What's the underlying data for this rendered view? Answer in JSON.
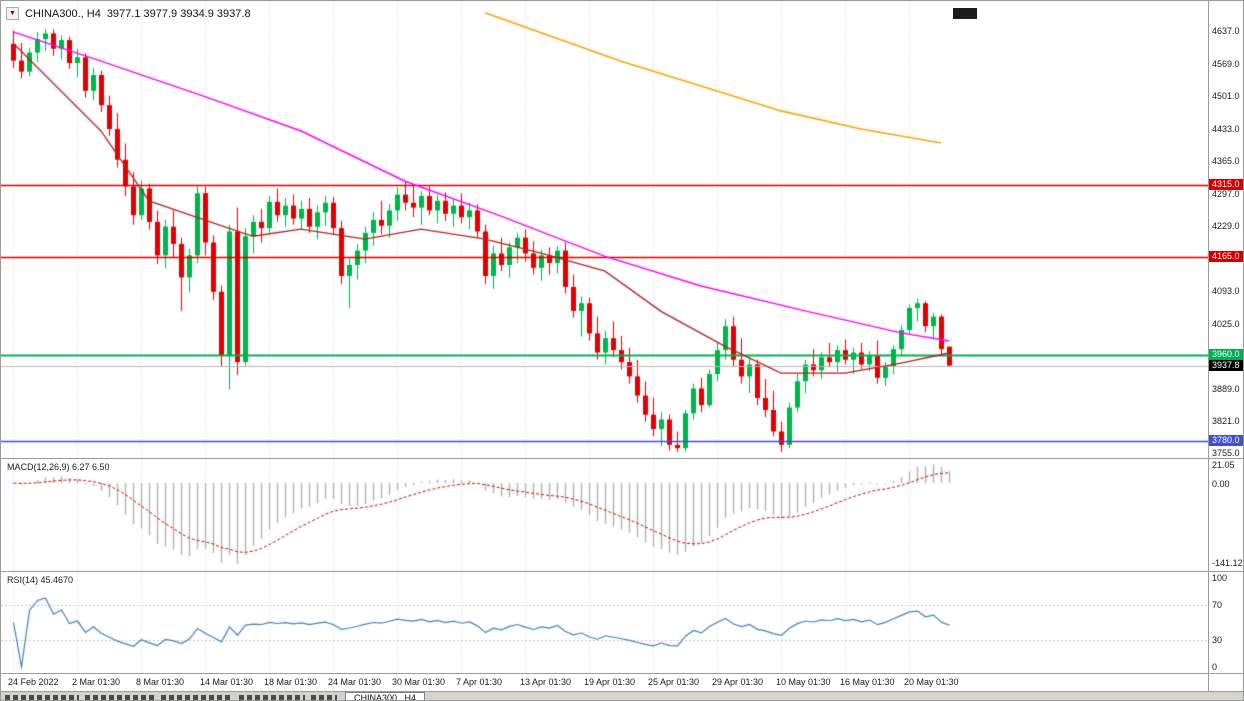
{
  "header": {
    "expander_icon": "▼",
    "title": "CHINA300., H4",
    "ohlc": "3977.1 3977.9 3934.9 3937.8"
  },
  "price_axis": {
    "ticks": [
      {
        "v": 4637,
        "t": "4637.0"
      },
      {
        "v": 4569,
        "t": "4569.0"
      },
      {
        "v": 4501,
        "t": "4501.0"
      },
      {
        "v": 4433,
        "t": "4433.0"
      },
      {
        "v": 4365,
        "t": "4365.0"
      },
      {
        "v": 4297,
        "t": "4297.0"
      },
      {
        "v": 4229,
        "t": "4229.0"
      },
      {
        "v": 4093,
        "t": "4093.0"
      },
      {
        "v": 4025,
        "t": "4025.0"
      },
      {
        "v": 3889,
        "t": "3889.0"
      },
      {
        "v": 3821,
        "t": "3821.0"
      },
      {
        "v": 3755,
        "t": "3755.0"
      }
    ],
    "level_labels": [
      {
        "v": 4315.0,
        "t": "4315.0",
        "bg": "#d40000"
      },
      {
        "v": 4165.0,
        "t": "4165.0",
        "bg": "#d40000"
      },
      {
        "v": 3960.0,
        "t": "3960.0",
        "bg": "#00b050"
      },
      {
        "v": 3937.8,
        "t": "3937.8",
        "bg": "#000000"
      },
      {
        "v": 3780.0,
        "t": "3780.0",
        "bg": "#4050c8"
      }
    ]
  },
  "macd_panel": {
    "label": "MACD(12,26,9) 6.27 6.50",
    "params": {
      "fast": 12,
      "slow": 26,
      "signal": 9
    },
    "current": {
      "macd": 6.27,
      "signal": 6.5
    },
    "axis": [
      {
        "t": "21.05"
      },
      {
        "t": "0.00"
      },
      {
        "t": "-141.12"
      }
    ]
  },
  "rsi_panel": {
    "label": "RSI(14) 45.4670",
    "period": 14,
    "current": 45.467,
    "axis": [
      {
        "v": 100,
        "t": "100"
      },
      {
        "v": 70,
        "t": "70"
      },
      {
        "v": 30,
        "t": "30"
      },
      {
        "v": 0,
        "t": "0"
      }
    ],
    "levels": [
      70,
      30
    ]
  },
  "bottom_bar": {
    "active_tab": "CHINA300., H4"
  },
  "colors": {
    "background": "#ffffff",
    "bull": "#00b44a",
    "bear": "#e00000",
    "ma_fast": "#b22222",
    "ma_mid": "#ff00ff",
    "ma_slow": "#ffa200",
    "current_price_line": "#b8b8b8",
    "macd_hist": "#b0b0b0",
    "macd_signal": "#d40000",
    "rsi_line": "#4080c0",
    "grid": "#d8d8d8"
  },
  "chart_data": {
    "type": "candlestick",
    "title": "CHINA300., H4",
    "symbol": "CHINA300.",
    "timeframe": "H4",
    "ohlc_current": {
      "open": 3977.1,
      "high": 3977.9,
      "low": 3934.9,
      "close": 3937.8
    },
    "ylim": [
      3749,
      4680
    ],
    "bars_per_x_tick": 8,
    "x_tick_labels": [
      "24 Feb 2022",
      "2 Mar 01:30",
      "8 Mar 01:30",
      "14 Mar 01:30",
      "18 Mar 01:30",
      "24 Mar 01:30",
      "30 Mar 01:30",
      "7 Apr 01:30",
      "13 Apr 01:30",
      "19 Apr 01:30",
      "25 Apr 01:30",
      "29 Apr 01:30",
      "10 May 01:30",
      "16 May 01:30",
      "20 May 01:30"
    ],
    "h_lines": [
      {
        "price": 4315.0,
        "color": "#d40000",
        "width": 1.6
      },
      {
        "price": 4165.0,
        "color": "#d40000",
        "width": 1.6
      },
      {
        "price": 3960.0,
        "color": "#00b050",
        "width": 2
      },
      {
        "price": 3780.0,
        "color": "#4050c8",
        "width": 1.6
      }
    ],
    "current_price": 3937.8,
    "candles": [
      [
        4610,
        4638,
        4560,
        4575
      ],
      [
        4575,
        4612,
        4538,
        4552
      ],
      [
        4552,
        4602,
        4542,
        4592
      ],
      [
        4592,
        4635,
        4572,
        4620
      ],
      [
        4620,
        4640,
        4595,
        4632
      ],
      [
        4632,
        4640,
        4585,
        4600
      ],
      [
        4600,
        4628,
        4578,
        4618
      ],
      [
        4618,
        4625,
        4558,
        4570
      ],
      [
        4570,
        4600,
        4540,
        4582
      ],
      [
        4582,
        4590,
        4498,
        4512
      ],
      [
        4512,
        4560,
        4492,
        4545
      ],
      [
        4545,
        4554,
        4468,
        4482
      ],
      [
        4482,
        4502,
        4418,
        4432
      ],
      [
        4432,
        4465,
        4352,
        4368
      ],
      [
        4368,
        4402,
        4292,
        4312
      ],
      [
        4312,
        4342,
        4232,
        4252
      ],
      [
        4252,
        4325,
        4242,
        4308
      ],
      [
        4308,
        4318,
        4222,
        4238
      ],
      [
        4238,
        4262,
        4150,
        4168
      ],
      [
        4168,
        4242,
        4142,
        4228
      ],
      [
        4228,
        4262,
        4162,
        4192
      ],
      [
        4192,
        4205,
        4052,
        4122
      ],
      [
        4122,
        4182,
        4092,
        4168
      ],
      [
        4168,
        4315,
        4152,
        4298
      ],
      [
        4298,
        4312,
        4168,
        4195
      ],
      [
        4195,
        4210,
        4075,
        4092
      ],
      [
        4092,
        4105,
        3935,
        3958
      ],
      [
        3958,
        4232,
        3888,
        4218
      ],
      [
        4218,
        4268,
        3918,
        3945
      ],
      [
        3945,
        4225,
        3938,
        4208
      ],
      [
        4208,
        4252,
        4172,
        4238
      ],
      [
        4238,
        4265,
        4195,
        4225
      ],
      [
        4225,
        4292,
        4215,
        4280
      ],
      [
        4280,
        4308,
        4238,
        4252
      ],
      [
        4252,
        4288,
        4228,
        4272
      ],
      [
        4272,
        4295,
        4232,
        4245
      ],
      [
        4245,
        4282,
        4222,
        4265
      ],
      [
        4265,
        4288,
        4215,
        4228
      ],
      [
        4228,
        4272,
        4202,
        4258
      ],
      [
        4258,
        4292,
        4230,
        4278
      ],
      [
        4278,
        4290,
        4212,
        4225
      ],
      [
        4225,
        4240,
        4108,
        4125
      ],
      [
        4125,
        4162,
        4058,
        4148
      ],
      [
        4148,
        4192,
        4118,
        4178
      ],
      [
        4178,
        4228,
        4152,
        4215
      ],
      [
        4215,
        4258,
        4188,
        4242
      ],
      [
        4242,
        4282,
        4212,
        4230
      ],
      [
        4230,
        4275,
        4205,
        4262
      ],
      [
        4262,
        4310,
        4240,
        4295
      ],
      [
        4295,
        4322,
        4262,
        4278
      ],
      [
        4278,
        4315,
        4248,
        4268
      ],
      [
        4268,
        4302,
        4232,
        4292
      ],
      [
        4292,
        4312,
        4252,
        4262
      ],
      [
        4262,
        4295,
        4235,
        4282
      ],
      [
        4282,
        4300,
        4240,
        4255
      ],
      [
        4255,
        4285,
        4228,
        4272
      ],
      [
        4272,
        4298,
        4235,
        4248
      ],
      [
        4248,
        4278,
        4222,
        4262
      ],
      [
        4262,
        4275,
        4205,
        4218
      ],
      [
        4218,
        4232,
        4108,
        4125
      ],
      [
        4125,
        4188,
        4098,
        4172
      ],
      [
        4172,
        4205,
        4135,
        4148
      ],
      [
        4148,
        4195,
        4122,
        4185
      ],
      [
        4185,
        4215,
        4152,
        4205
      ],
      [
        4205,
        4222,
        4155,
        4172
      ],
      [
        4172,
        4198,
        4128,
        4142
      ],
      [
        4142,
        4180,
        4115,
        4168
      ],
      [
        4168,
        4185,
        4128,
        4152
      ],
      [
        4152,
        4188,
        4130,
        4178
      ],
      [
        4178,
        4195,
        4088,
        4102
      ],
      [
        4102,
        4128,
        4038,
        4052
      ],
      [
        4052,
        4082,
        3998,
        4068
      ],
      [
        4068,
        4080,
        3990,
        4005
      ],
      [
        4005,
        4040,
        3950,
        3965
      ],
      [
        3965,
        4010,
        3940,
        3995
      ],
      [
        3995,
        4030,
        3955,
        3970
      ],
      [
        3970,
        4000,
        3930,
        3945
      ],
      [
        3945,
        3975,
        3900,
        3915
      ],
      [
        3915,
        3950,
        3860,
        3875
      ],
      [
        3875,
        3905,
        3820,
        3835
      ],
      [
        3835,
        3870,
        3790,
        3805
      ],
      [
        3805,
        3840,
        3770,
        3825
      ],
      [
        3825,
        3835,
        3760,
        3772
      ],
      [
        3772,
        3800,
        3757,
        3765
      ],
      [
        3765,
        3845,
        3758,
        3838
      ],
      [
        3838,
        3900,
        3825,
        3890
      ],
      [
        3890,
        3912,
        3840,
        3855
      ],
      [
        3855,
        3930,
        3850,
        3920
      ],
      [
        3920,
        3985,
        3905,
        3970
      ],
      [
        3970,
        4035,
        3950,
        4020
      ],
      [
        4020,
        4040,
        3935,
        3950
      ],
      [
        3950,
        3995,
        3900,
        3915
      ],
      [
        3915,
        3955,
        3880,
        3940
      ],
      [
        3940,
        3950,
        3855,
        3870
      ],
      [
        3870,
        3910,
        3830,
        3845
      ],
      [
        3845,
        3885,
        3790,
        3800
      ],
      [
        3800,
        3820,
        3757,
        3772
      ],
      [
        3772,
        3860,
        3765,
        3850
      ],
      [
        3850,
        3920,
        3840,
        3905
      ],
      [
        3905,
        3950,
        3880,
        3940
      ],
      [
        3940,
        3972,
        3915,
        3928
      ],
      [
        3928,
        3965,
        3910,
        3955
      ],
      [
        3955,
        3985,
        3935,
        3945
      ],
      [
        3945,
        3980,
        3925,
        3970
      ],
      [
        3970,
        3992,
        3940,
        3950
      ],
      [
        3950,
        3975,
        3920,
        3965
      ],
      [
        3965,
        3985,
        3930,
        3940
      ],
      [
        3940,
        3968,
        3925,
        3958
      ],
      [
        3958,
        3990,
        3900,
        3912
      ],
      [
        3912,
        3945,
        3895,
        3935
      ],
      [
        3935,
        3980,
        3920,
        3972
      ],
      [
        3972,
        4022,
        3960,
        4012
      ],
      [
        4012,
        4065,
        4005,
        4058
      ],
      [
        4058,
        4078,
        4030,
        4068
      ],
      [
        4068,
        4072,
        4008,
        4020
      ],
      [
        4020,
        4048,
        3995,
        4040
      ],
      [
        4040,
        4045,
        3958,
        3972
      ],
      [
        3977.1,
        3977.9,
        3934.9,
        3937.8
      ]
    ],
    "moving_averages": [
      {
        "name": "ma-slow-orange",
        "color": "#ffa200",
        "width": 1.6,
        "points": [
          [
            59,
            4675
          ],
          [
            76,
            4574
          ],
          [
            86,
            4522
          ],
          [
            96,
            4470
          ],
          [
            106,
            4432
          ],
          [
            116,
            4403
          ]
        ]
      },
      {
        "name": "ma-mid-magenta",
        "color": "#ff00ff",
        "width": 1.4,
        "points": [
          [
            0,
            4635
          ],
          [
            11,
            4574
          ],
          [
            24,
            4500
          ],
          [
            36,
            4428
          ],
          [
            49,
            4323
          ],
          [
            61,
            4250
          ],
          [
            74,
            4166
          ],
          [
            86,
            4104
          ],
          [
            99,
            4052
          ],
          [
            111,
            4006
          ],
          [
            117,
            3989
          ]
        ]
      },
      {
        "name": "ma-fast-darkred",
        "color": "#b22222",
        "width": 1.3,
        "points": [
          [
            0,
            4612
          ],
          [
            11,
            4428
          ],
          [
            17,
            4282
          ],
          [
            25,
            4236
          ],
          [
            30,
            4208
          ],
          [
            36,
            4223
          ],
          [
            44,
            4202
          ],
          [
            51,
            4223
          ],
          [
            59,
            4202
          ],
          [
            66,
            4173
          ],
          [
            74,
            4135
          ],
          [
            81,
            4051
          ],
          [
            89,
            3978
          ],
          [
            96,
            3922
          ],
          [
            104,
            3922
          ],
          [
            111,
            3943
          ],
          [
            117,
            3964
          ]
        ]
      }
    ]
  }
}
